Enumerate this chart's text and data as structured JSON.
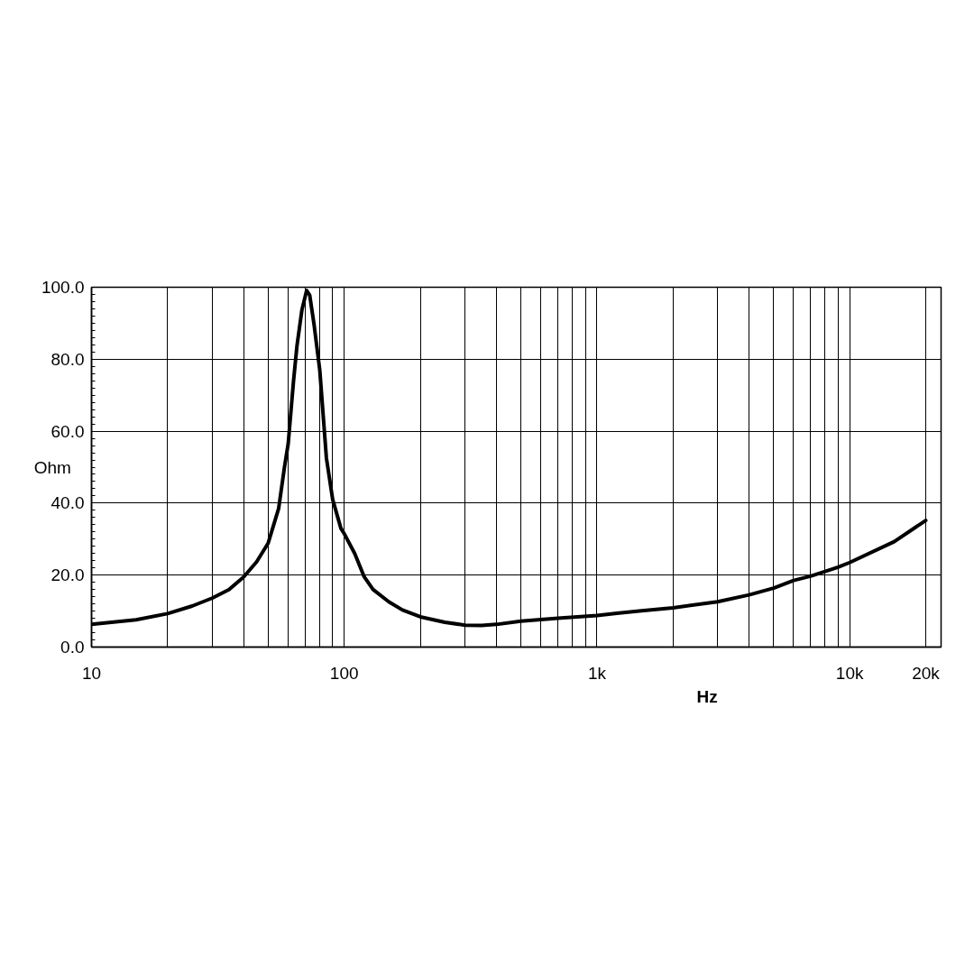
{
  "chart_data": {
    "type": "line",
    "xlabel": "Hz",
    "ylabel": "Ohm",
    "x": [
      10,
      15,
      20,
      25,
      30,
      35,
      40,
      45,
      50,
      55,
      58,
      60,
      63,
      65,
      68,
      71,
      73,
      76,
      80,
      85,
      90,
      93,
      97,
      100,
      110,
      120,
      130,
      150,
      170,
      200,
      250,
      300,
      350,
      400,
      500,
      700,
      1000,
      1200,
      1500,
      2000,
      3000,
      4000,
      5000,
      6000,
      7000,
      8000,
      9000,
      10000,
      15000,
      20000
    ],
    "series": [
      {
        "color": "#000000",
        "values": [
          6.3,
          7.6,
          9.3,
          11.4,
          13.6,
          16.0,
          19.5,
          23.7,
          28.9,
          38.5,
          50,
          56.5,
          74,
          83.7,
          93.7,
          99.1,
          97.8,
          89.5,
          77,
          52.5,
          41,
          37.5,
          33,
          31.5,
          26,
          19.5,
          16.0,
          12.6,
          10.3,
          8.4,
          6.9,
          6.1,
          6.0,
          6.3,
          7.2,
          8.0,
          8.8,
          9.4,
          10.1,
          10.9,
          12.6,
          14.5,
          16.4,
          18.5,
          19.7,
          21.0,
          22.2,
          23.5,
          29.3,
          35.2
        ]
      }
    ],
    "log": "x",
    "xlim": [
      10,
      23000
    ],
    "ylim": [
      0,
      100
    ],
    "xticks": [
      {
        "value": 10,
        "label": "10"
      },
      {
        "value": 20,
        "label": null
      },
      {
        "value": 30,
        "label": null
      },
      {
        "value": 40,
        "label": null
      },
      {
        "value": 50,
        "label": null
      },
      {
        "value": 60,
        "label": null
      },
      {
        "value": 70,
        "label": null
      },
      {
        "value": 80,
        "label": null
      },
      {
        "value": 90,
        "label": null
      },
      {
        "value": 100,
        "label": "100"
      },
      {
        "value": 200,
        "label": null
      },
      {
        "value": 300,
        "label": null
      },
      {
        "value": 400,
        "label": null
      },
      {
        "value": 500,
        "label": null
      },
      {
        "value": 600,
        "label": null
      },
      {
        "value": 700,
        "label": null
      },
      {
        "value": 800,
        "label": null
      },
      {
        "value": 900,
        "label": null
      },
      {
        "value": 1000,
        "label": "1k"
      },
      {
        "value": 2000,
        "label": null
      },
      {
        "value": 3000,
        "label": null
      },
      {
        "value": 4000,
        "label": null
      },
      {
        "value": 5000,
        "label": null
      },
      {
        "value": 6000,
        "label": null
      },
      {
        "value": 7000,
        "label": null
      },
      {
        "value": 8000,
        "label": null
      },
      {
        "value": 9000,
        "label": null
      },
      {
        "value": 10000,
        "label": "10k"
      },
      {
        "value": 20000,
        "label": "20k"
      }
    ],
    "yticks": [
      {
        "value": 0,
        "label": "0.0"
      },
      {
        "value": 20,
        "label": "20.0"
      },
      {
        "value": 40,
        "label": "40.0"
      },
      {
        "value": 60,
        "label": "60.0"
      },
      {
        "value": 80,
        "label": "80.0"
      },
      {
        "value": 100,
        "label": "100.0"
      }
    ],
    "grid": true,
    "marker": "none",
    "line_style": "solid"
  }
}
